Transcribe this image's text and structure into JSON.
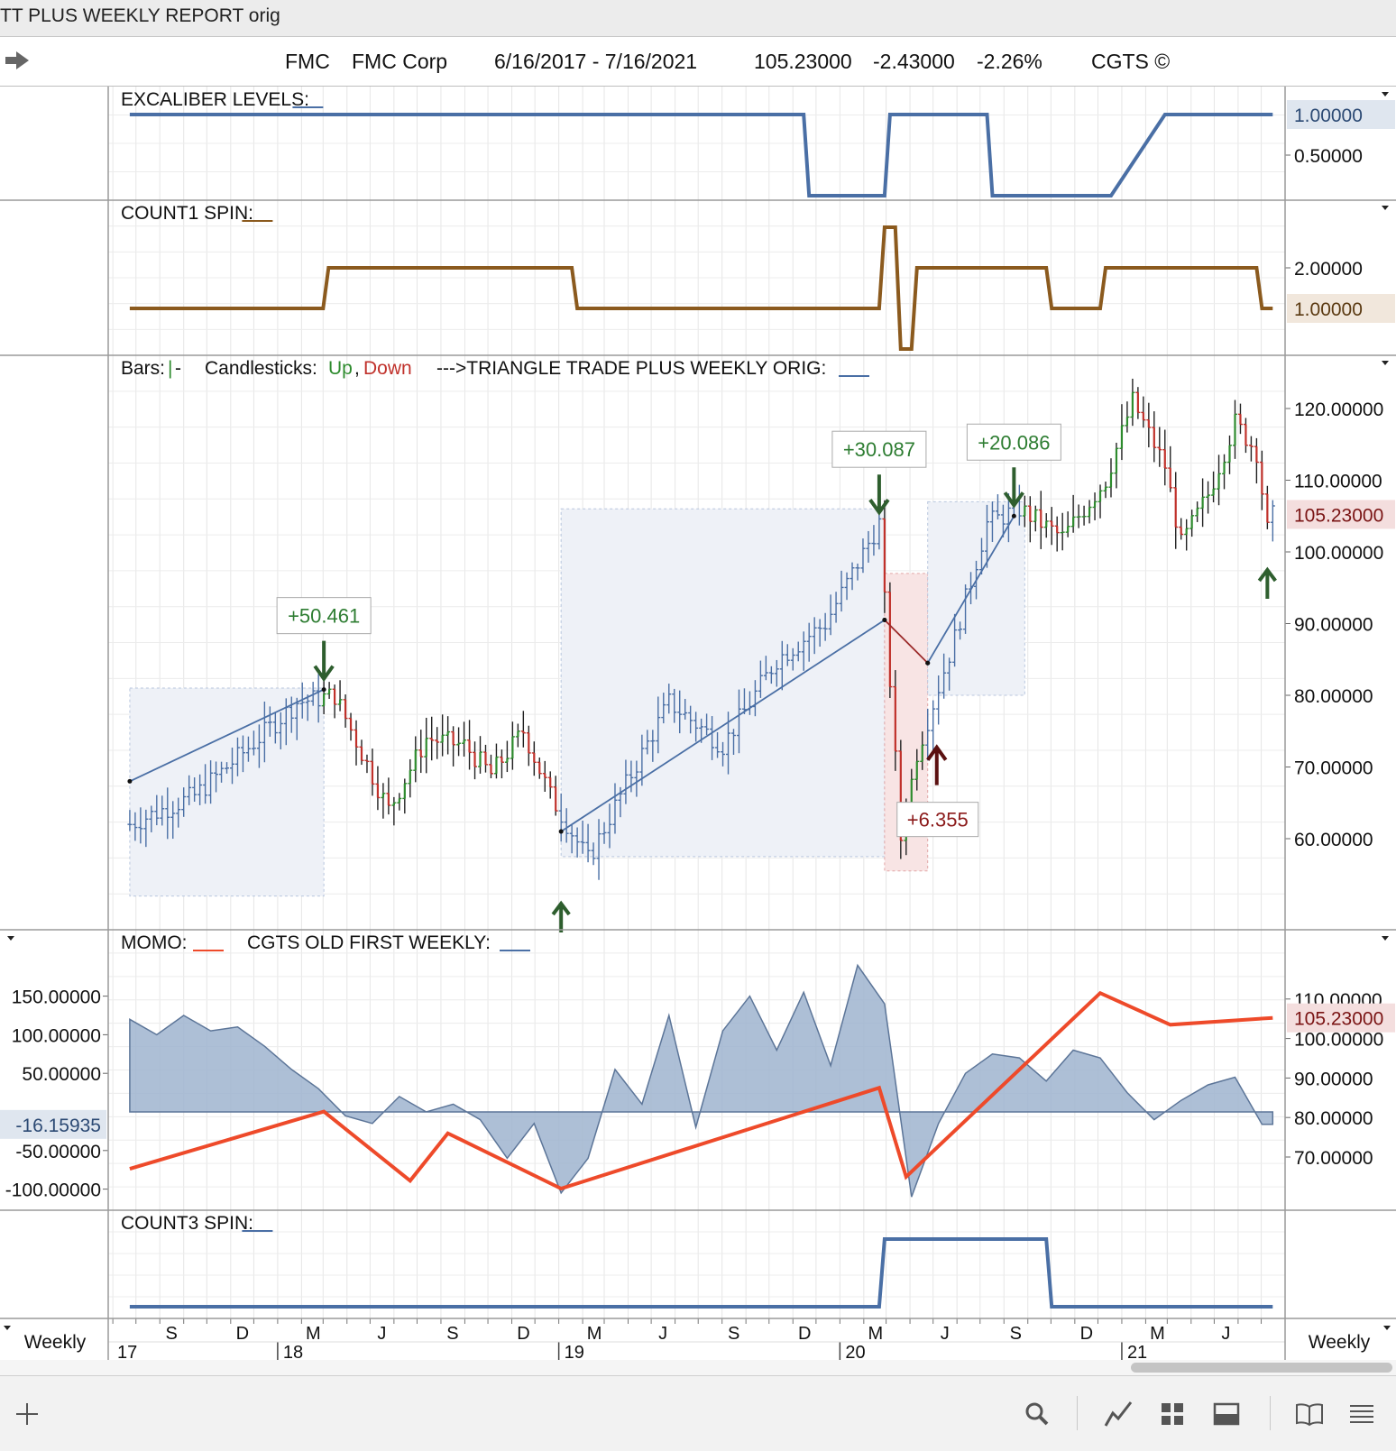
{
  "window": {
    "title": "TT PLUS WEEKLY REPORT orig"
  },
  "header": {
    "symbol": "FMC",
    "company": "FMC Corp",
    "date_range": "6/16/2017 - 7/16/2021",
    "last_price": "105.23000",
    "change": "-2.43000",
    "change_pct": "-2.26%",
    "copyright": "CGTS ©"
  },
  "colors": {
    "blue_line": "#4a6fa5",
    "brown_line": "#8b5a1e",
    "up": "#2e8b2e",
    "down": "#c0312b",
    "momo": "#ee4a2a",
    "area": "#9fb4cf"
  },
  "timeline": {
    "months": [
      "S",
      "D",
      "M",
      "J",
      "S",
      "D",
      "M",
      "J",
      "S",
      "D",
      "M",
      "J",
      "S",
      "D",
      "M",
      "J"
    ],
    "years": [
      "17",
      "18",
      "19",
      "20",
      "21"
    ]
  },
  "chart_data": [
    {
      "name": "EXCALIBER LEVELS",
      "type": "line",
      "title": "EXCALIBER LEVELS:",
      "y_ticks": [
        "1.00000",
        "0.50000"
      ],
      "current_value": "1.00000",
      "x": [
        "2017-06-23",
        "2019-11-15",
        "2019-11-22",
        "2020-02-28",
        "2020-03-06",
        "2020-07-10",
        "2020-07-17",
        "2020-12-18",
        "2021-02-26",
        "2021-03-05",
        "2021-07-16"
      ],
      "values": [
        1,
        1,
        0,
        0,
        1,
        1,
        0,
        0,
        1,
        1,
        1
      ]
    },
    {
      "name": "COUNT1 SPIN",
      "type": "line",
      "title": "COUNT1 SPIN:",
      "y_ticks": [
        "2.00000",
        "1.00000"
      ],
      "current_value": "1.00000",
      "x": [
        "2017-06-23",
        "2018-03-01",
        "2018-03-08",
        "2019-01-18",
        "2019-01-25",
        "2020-02-21",
        "2020-02-28",
        "2020-03-13",
        "2020-03-20",
        "2020-04-03",
        "2020-04-10",
        "2020-09-25",
        "2020-10-02",
        "2020-12-04",
        "2020-12-11",
        "2021-06-25",
        "2021-07-02",
        "2021-07-16"
      ],
      "values": [
        1,
        1,
        2,
        2,
        1,
        1,
        3,
        3,
        0,
        0,
        2,
        2,
        1,
        1,
        2,
        2,
        1,
        1
      ]
    },
    {
      "name": "TRIANGLE TRADE PLUS WEEKLY ORIG",
      "type": "line",
      "title": "--->TRIANGLE TRADE PLUS WEEKLY ORIG:",
      "legend": {
        "bars": "Bars:",
        "candles": "Candlesticks:",
        "up": "Up",
        "down": "Down"
      },
      "y_ticks": [
        "120.00000",
        "110.00000",
        "100.00000",
        "90.00000",
        "80.00000",
        "70.00000",
        "60.00000"
      ],
      "ylim": [
        52,
        125
      ],
      "current_price": "105.23000",
      "price_path": {
        "x": [
          "2017-06-23",
          "2017-09-15",
          "2017-11-17",
          "2018-01-26",
          "2018-03-16",
          "2018-04-20",
          "2018-05-25",
          "2018-07-13",
          "2018-08-31",
          "2018-10-05",
          "2018-11-16",
          "2018-12-21",
          "2019-02-08",
          "2019-04-05",
          "2019-05-24",
          "2019-08-02",
          "2019-10-11",
          "2019-12-13",
          "2020-02-21",
          "2020-03-20",
          "2020-04-10",
          "2020-05-29",
          "2020-07-10",
          "2020-08-21",
          "2020-10-16",
          "2020-12-11",
          "2021-01-15",
          "2021-02-26",
          "2021-03-19",
          "2021-04-23",
          "2021-05-28",
          "2021-06-25",
          "2021-07-09",
          "2021-07-16"
        ],
        "values": [
          62,
          66,
          72,
          79,
          80,
          72,
          64,
          74,
          73,
          69,
          75,
          66,
          57,
          69,
          79,
          73,
          85,
          90,
          104,
          60,
          72,
          88,
          104,
          106,
          102,
          110,
          121,
          112,
          101,
          108,
          118,
          114,
          103,
          105
        ]
      },
      "trend_lines": [
        {
          "x": [
            "2017-06-23",
            "2018-03-02"
          ],
          "values": [
            68,
            80.8
          ]
        },
        {
          "x": [
            "2019-01-04",
            "2020-02-28"
          ],
          "values": [
            61,
            90.5
          ]
        },
        {
          "x": [
            "2020-02-28",
            "2020-04-24"
          ],
          "values": [
            90.5,
            84.5
          ]
        },
        {
          "x": [
            "2020-04-24",
            "2020-08-14"
          ],
          "values": [
            84.5,
            105
          ]
        }
      ],
      "annotations": [
        {
          "label": "+50.461",
          "kind": "sell",
          "x": "2018-03-02",
          "y": 80.8
        },
        {
          "label": "+30.087",
          "kind": "sell",
          "x": "2020-02-21",
          "y": 104
        },
        {
          "label": "+20.086",
          "kind": "sell",
          "x": "2020-08-14",
          "y": 105
        },
        {
          "label": "+6.355",
          "kind": "buy",
          "x": "2020-04-10",
          "y": 73
        }
      ],
      "buy_arrows": [
        {
          "x": "2019-01-04"
        },
        {
          "x": "2021-07-09"
        }
      ]
    },
    {
      "name": "MOMO / CGTS OLD FIRST WEEKLY",
      "type": "area",
      "title": "MOMO:",
      "title2": "CGTS OLD FIRST WEEKLY:",
      "left_ticks": [
        "150.00000",
        "100.00000",
        "50.00000",
        "-50.00000",
        "-100.00000"
      ],
      "left_current": "-16.15935",
      "right_ticks": [
        "110.00000",
        "100.00000",
        "90.00000",
        "80.00000",
        "70.00000"
      ],
      "right_current": "105.23000",
      "left_ylim": [
        -115,
        195
      ],
      "right_ylim": [
        61.5,
        122
      ],
      "momentum_area": {
        "x": [
          "2017-06-23",
          "2017-07-28",
          "2017-09-01",
          "2017-10-06",
          "2017-11-10",
          "2017-12-15",
          "2018-01-19",
          "2018-02-23",
          "2018-03-30",
          "2018-05-04",
          "2018-06-08",
          "2018-07-13",
          "2018-08-17",
          "2018-09-21",
          "2018-10-26",
          "2018-11-30",
          "2019-01-04",
          "2019-02-08",
          "2019-03-15",
          "2019-04-19",
          "2019-05-24",
          "2019-06-28",
          "2019-08-02",
          "2019-09-06",
          "2019-10-11",
          "2019-11-15",
          "2019-12-20",
          "2020-01-24",
          "2020-02-28",
          "2020-04-03",
          "2020-05-08",
          "2020-06-12",
          "2020-07-17",
          "2020-08-21",
          "2020-09-25",
          "2020-10-30",
          "2020-12-04",
          "2021-01-08",
          "2021-02-12",
          "2021-03-19",
          "2021-04-23",
          "2021-05-28",
          "2021-07-02",
          "2021-07-16"
        ],
        "values": [
          120,
          100,
          125,
          105,
          110,
          85,
          55,
          30,
          -5,
          -15,
          20,
          0,
          10,
          -10,
          -60,
          -15,
          -105,
          -60,
          55,
          10,
          125,
          -20,
          105,
          150,
          80,
          155,
          60,
          190,
          140,
          -110,
          -15,
          50,
          75,
          70,
          40,
          80,
          70,
          25,
          -10,
          15,
          35,
          45,
          -16,
          -16
        ]
      },
      "momo_line": {
        "x": [
          "2017-06-23",
          "2018-03-02",
          "2018-06-22",
          "2018-08-10",
          "2019-01-04",
          "2020-02-21",
          "2020-03-27",
          "2020-12-04",
          "2021-03-05",
          "2021-07-16"
        ],
        "values": [
          67,
          81.5,
          64,
          76,
          62,
          87.5,
          65,
          111.5,
          103.5,
          105.23
        ]
      }
    },
    {
      "name": "COUNT3 SPIN",
      "type": "line",
      "title": "COUNT3 SPIN:",
      "x": [
        "2017-06-23",
        "2020-02-21",
        "2020-02-28",
        "2020-09-25",
        "2020-10-02",
        "2021-07-16"
      ],
      "values": [
        0,
        0,
        1,
        1,
        0,
        0
      ]
    }
  ],
  "footer": {
    "period_left": "Weekly",
    "period_right": "Weekly"
  }
}
